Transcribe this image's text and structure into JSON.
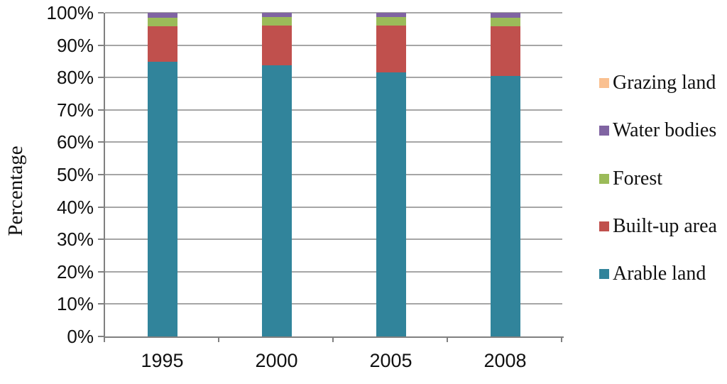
{
  "chart_data": {
    "type": "bar",
    "subtype": "stacked-100-percent-column",
    "title": "",
    "xlabel": "",
    "ylabel": "Percentage",
    "ylim": [
      0,
      100
    ],
    "grid": true,
    "legend_position": "right",
    "categories": [
      "1995",
      "2000",
      "2005",
      "2008"
    ],
    "y_tick_labels": [
      "0%",
      "10%",
      "20%",
      "30%",
      "40%",
      "50%",
      "60%",
      "70%",
      "80%",
      "90%",
      "100%"
    ],
    "series": [
      {
        "name": "Grazing land",
        "color": "#FAC090",
        "values": [
          0.0,
          0.0,
          0.0,
          0.0
        ]
      },
      {
        "name": "Water bodies",
        "color": "#8064A2",
        "values": [
          1.5,
          1.4,
          1.4,
          1.5
        ]
      },
      {
        "name": "Forest",
        "color": "#9BBB59",
        "values": [
          2.7,
          2.6,
          2.6,
          2.7
        ]
      },
      {
        "name": "Built-up area",
        "color": "#C0504D",
        "values": [
          11.0,
          12.3,
          14.5,
          15.4
        ]
      },
      {
        "name": "Arable land",
        "color": "#31849B",
        "values": [
          84.8,
          83.7,
          81.5,
          80.4
        ]
      }
    ],
    "series_note": "series listed top-of-stack first; each category sums to 100%"
  },
  "style_colors": {
    "axis": "#808080",
    "gridline": "#A6A6A6",
    "text": "#111111",
    "background": "#FFFFFF"
  }
}
